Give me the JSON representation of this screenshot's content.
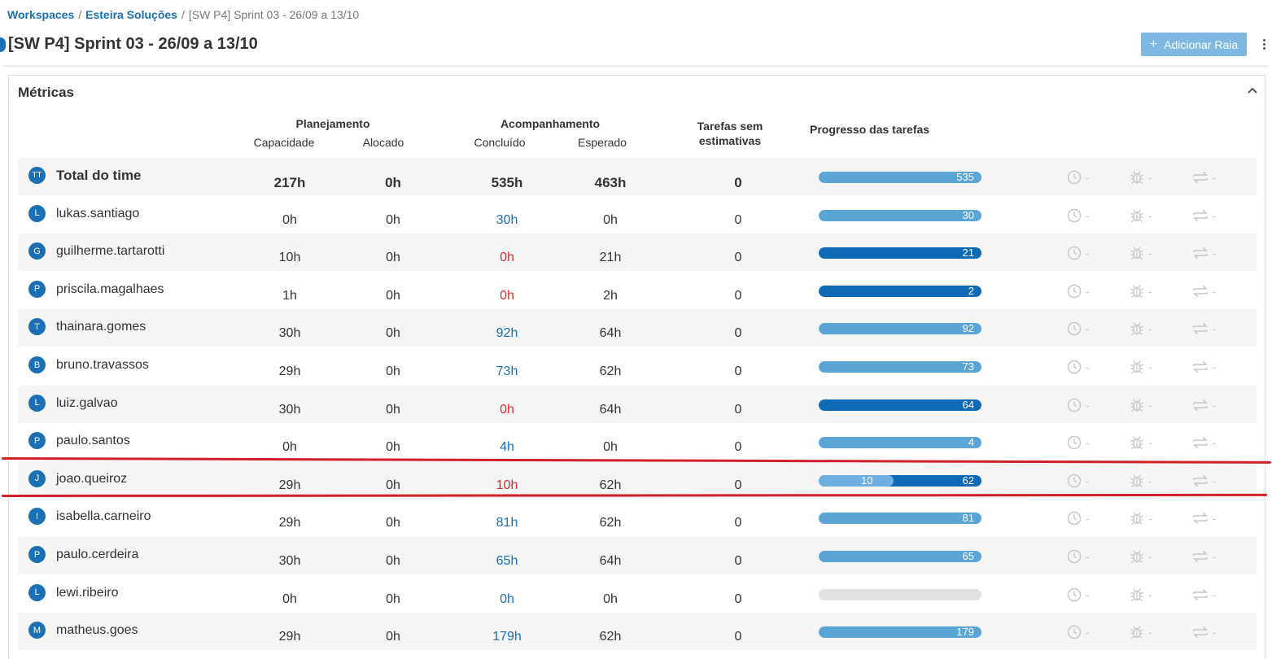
{
  "breadcrumb": {
    "workspaces": "Workspaces",
    "workspace": "Esteira Soluções",
    "current": "[SW P4] Sprint 03 - 26/09 a 13/10",
    "separator": "/"
  },
  "page": {
    "title": "[SW P4] Sprint 03 - 26/09 a 13/10",
    "add_lane_label": "Adicionar Raia"
  },
  "metrics": {
    "title": "Métricas",
    "headers": {
      "planning": "Planejamento",
      "capacity": "Capacidade",
      "allocated": "Alocado",
      "tracking": "Acompanhamento",
      "done": "Concluído",
      "expected": "Esperado",
      "no_estimate_line1": "Tarefas sem",
      "no_estimate_line2": "estimativas",
      "progress": "Progresso das tarefas"
    },
    "status_placeholder": "-",
    "rows": [
      {
        "initials": "TT",
        "name": "Total do time",
        "capacity": "217h",
        "allocated": "0h",
        "done": "535h",
        "expected": "463h",
        "no_estimate": "0",
        "done_color": "default",
        "bar_done": 535,
        "bar_expected": 463,
        "bar_label_end": "535",
        "bar_label_mid": ""
      },
      {
        "initials": "L",
        "name": "lukas.santiago",
        "capacity": "0h",
        "allocated": "0h",
        "done": "30h",
        "expected": "0h",
        "no_estimate": "0",
        "done_color": "blue",
        "bar_done": 30,
        "bar_expected": 0,
        "bar_label_end": "30",
        "bar_label_mid": ""
      },
      {
        "initials": "G",
        "name": "guilherme.tartarotti",
        "capacity": "10h",
        "allocated": "0h",
        "done": "0h",
        "expected": "21h",
        "no_estimate": "0",
        "done_color": "red",
        "bar_done": 0,
        "bar_expected": 21,
        "bar_label_end": "21",
        "bar_label_mid": ""
      },
      {
        "initials": "P",
        "name": "priscila.magalhaes",
        "capacity": "1h",
        "allocated": "0h",
        "done": "0h",
        "expected": "2h",
        "no_estimate": "0",
        "done_color": "red",
        "bar_done": 0,
        "bar_expected": 2,
        "bar_label_end": "2",
        "bar_label_mid": ""
      },
      {
        "initials": "T",
        "name": "thainara.gomes",
        "capacity": "30h",
        "allocated": "0h",
        "done": "92h",
        "expected": "64h",
        "no_estimate": "0",
        "done_color": "blue",
        "bar_done": 92,
        "bar_expected": 64,
        "bar_label_end": "92",
        "bar_label_mid": ""
      },
      {
        "initials": "B",
        "name": "bruno.travassos",
        "capacity": "29h",
        "allocated": "0h",
        "done": "73h",
        "expected": "62h",
        "no_estimate": "0",
        "done_color": "blue",
        "bar_done": 73,
        "bar_expected": 62,
        "bar_label_end": "73",
        "bar_label_mid": ""
      },
      {
        "initials": "L",
        "name": "luiz.galvao",
        "capacity": "30h",
        "allocated": "0h",
        "done": "0h",
        "expected": "64h",
        "no_estimate": "0",
        "done_color": "red",
        "bar_done": 0,
        "bar_expected": 64,
        "bar_label_end": "64",
        "bar_label_mid": ""
      },
      {
        "initials": "P",
        "name": "paulo.santos",
        "capacity": "0h",
        "allocated": "0h",
        "done": "4h",
        "expected": "0h",
        "no_estimate": "0",
        "done_color": "blue",
        "bar_done": 4,
        "bar_expected": 0,
        "bar_label_end": "4",
        "bar_label_mid": ""
      },
      {
        "initials": "J",
        "name": "joao.queiroz",
        "capacity": "29h",
        "allocated": "0h",
        "done": "10h",
        "expected": "62h",
        "no_estimate": "0",
        "done_color": "red",
        "bar_done": 10,
        "bar_expected": 62,
        "bar_label_end": "62",
        "bar_label_mid": "10"
      },
      {
        "initials": "I",
        "name": "isabella.carneiro",
        "capacity": "29h",
        "allocated": "0h",
        "done": "81h",
        "expected": "62h",
        "no_estimate": "0",
        "done_color": "blue",
        "bar_done": 81,
        "bar_expected": 62,
        "bar_label_end": "81",
        "bar_label_mid": ""
      },
      {
        "initials": "P",
        "name": "paulo.cerdeira",
        "capacity": "30h",
        "allocated": "0h",
        "done": "65h",
        "expected": "64h",
        "no_estimate": "0",
        "done_color": "blue",
        "bar_done": 65,
        "bar_expected": 64,
        "bar_label_end": "65",
        "bar_label_mid": ""
      },
      {
        "initials": "L",
        "name": "lewi.ribeiro",
        "capacity": "0h",
        "allocated": "0h",
        "done": "0h",
        "expected": "0h",
        "no_estimate": "0",
        "done_color": "blue",
        "bar_done": 0,
        "bar_expected": 0,
        "bar_label_end": "",
        "bar_label_mid": ""
      },
      {
        "initials": "M",
        "name": "matheus.goes",
        "capacity": "29h",
        "allocated": "0h",
        "done": "179h",
        "expected": "62h",
        "no_estimate": "0",
        "done_color": "blue",
        "bar_done": 179,
        "bar_expected": 62,
        "bar_label_end": "179",
        "bar_label_mid": ""
      }
    ]
  },
  "icons": {
    "collapse": "chevron-up-icon",
    "clock": "clock-icon",
    "bug": "bug-icon",
    "swap": "swap-arrows-icon",
    "more": "vertical-dots-icon"
  },
  "colors": {
    "brand": "#1a6fb5",
    "bar_light": "#5ba4d6",
    "bar_dark": "#0e6ab5",
    "bar_empty": "#e2e2e2",
    "over_done_text": "#d32f2f",
    "highlight_line": "#d0202a"
  }
}
